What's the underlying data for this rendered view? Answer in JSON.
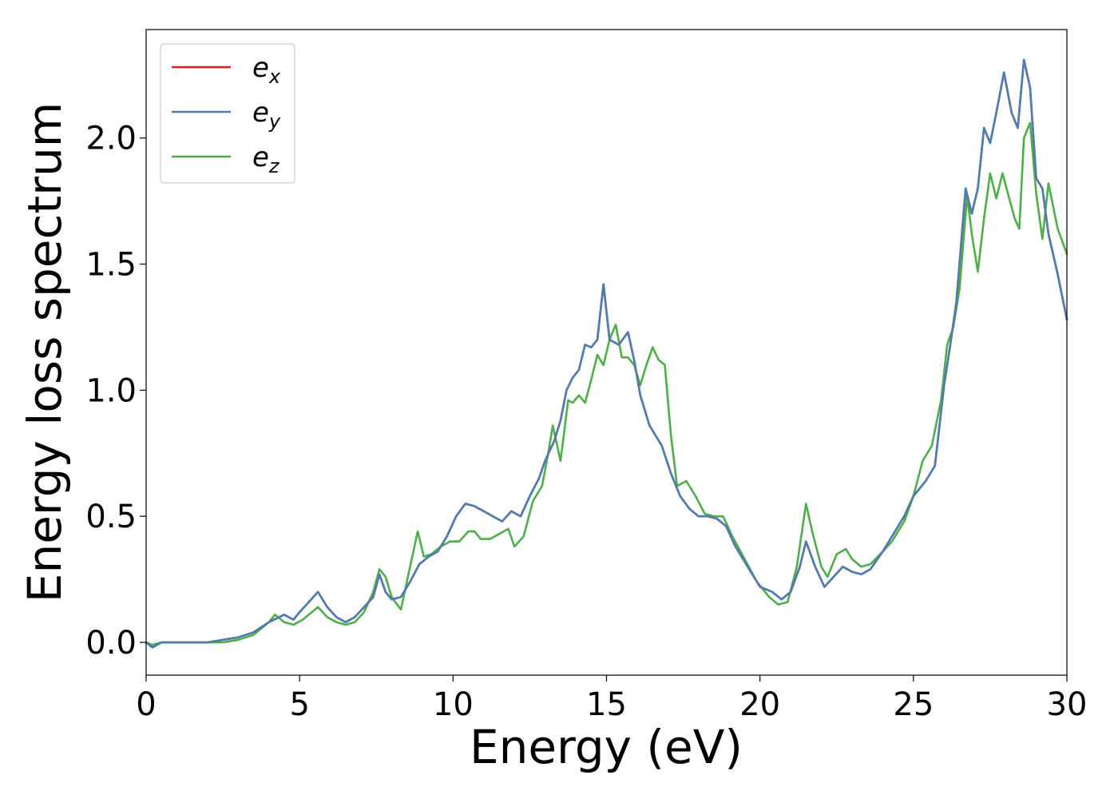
{
  "chart_data": {
    "type": "line",
    "title": "",
    "xlabel": "Energy (eV)",
    "ylabel": "Energy loss spectrum",
    "xlim": [
      0,
      30
    ],
    "ylim": [
      -0.13,
      2.43
    ],
    "xticks": [
      0,
      5,
      10,
      15,
      20,
      25,
      30
    ],
    "xtick_labels": [
      "0",
      "5",
      "10",
      "15",
      "20",
      "25",
      "30"
    ],
    "yticks": [
      0.0,
      0.5,
      1.0,
      1.5,
      2.0
    ],
    "ytick_labels": [
      "0.0",
      "0.5",
      "1.0",
      "1.5",
      "2.0"
    ],
    "grid": false,
    "legend_position": "top-left",
    "series": [
      {
        "name": "e",
        "subscript": "x",
        "color": "#e41a1c",
        "points": [
          [
            0,
            0.0
          ],
          [
            0.2,
            -0.02
          ],
          [
            0.5,
            0.0
          ],
          [
            1,
            0.0
          ],
          [
            2,
            0.0
          ],
          [
            2.5,
            0.01
          ],
          [
            3,
            0.02
          ],
          [
            3.5,
            0.04
          ],
          [
            4,
            0.08
          ],
          [
            4.5,
            0.11
          ],
          [
            4.8,
            0.09
          ],
          [
            5,
            0.12
          ],
          [
            5.3,
            0.16
          ],
          [
            5.6,
            0.2
          ],
          [
            5.9,
            0.14
          ],
          [
            6.2,
            0.1
          ],
          [
            6.5,
            0.08
          ],
          [
            6.8,
            0.1
          ],
          [
            7.1,
            0.14
          ],
          [
            7.4,
            0.18
          ],
          [
            7.6,
            0.27
          ],
          [
            7.8,
            0.2
          ],
          [
            8.0,
            0.17
          ],
          [
            8.3,
            0.18
          ],
          [
            8.6,
            0.24
          ],
          [
            8.9,
            0.31
          ],
          [
            9.2,
            0.34
          ],
          [
            9.5,
            0.36
          ],
          [
            9.8,
            0.42
          ],
          [
            10.1,
            0.5
          ],
          [
            10.4,
            0.55
          ],
          [
            10.7,
            0.54
          ],
          [
            11.0,
            0.52
          ],
          [
            11.3,
            0.5
          ],
          [
            11.6,
            0.48
          ],
          [
            11.9,
            0.52
          ],
          [
            12.2,
            0.5
          ],
          [
            12.5,
            0.58
          ],
          [
            12.8,
            0.65
          ],
          [
            13.0,
            0.72
          ],
          [
            13.3,
            0.8
          ],
          [
            13.5,
            0.88
          ],
          [
            13.7,
            1.0
          ],
          [
            13.9,
            1.05
          ],
          [
            14.1,
            1.08
          ],
          [
            14.3,
            1.18
          ],
          [
            14.5,
            1.17
          ],
          [
            14.7,
            1.2
          ],
          [
            14.9,
            1.42
          ],
          [
            15.1,
            1.2
          ],
          [
            15.4,
            1.18
          ],
          [
            15.7,
            1.23
          ],
          [
            15.9,
            1.12
          ],
          [
            16.1,
            0.98
          ],
          [
            16.4,
            0.86
          ],
          [
            16.8,
            0.78
          ],
          [
            17.1,
            0.67
          ],
          [
            17.4,
            0.58
          ],
          [
            17.7,
            0.53
          ],
          [
            18.0,
            0.5
          ],
          [
            18.3,
            0.5
          ],
          [
            18.6,
            0.49
          ],
          [
            18.9,
            0.46
          ],
          [
            19.2,
            0.38
          ],
          [
            19.6,
            0.3
          ],
          [
            20.0,
            0.22
          ],
          [
            20.4,
            0.2
          ],
          [
            20.7,
            0.17
          ],
          [
            21.0,
            0.2
          ],
          [
            21.3,
            0.3
          ],
          [
            21.5,
            0.4
          ],
          [
            21.8,
            0.3
          ],
          [
            22.1,
            0.22
          ],
          [
            22.4,
            0.26
          ],
          [
            22.7,
            0.3
          ],
          [
            23.0,
            0.28
          ],
          [
            23.3,
            0.27
          ],
          [
            23.6,
            0.29
          ],
          [
            24.0,
            0.36
          ],
          [
            24.4,
            0.44
          ],
          [
            24.7,
            0.5
          ],
          [
            25.0,
            0.58
          ],
          [
            25.4,
            0.64
          ],
          [
            25.7,
            0.7
          ],
          [
            26.0,
            1.02
          ],
          [
            26.2,
            1.18
          ],
          [
            26.4,
            1.35
          ],
          [
            26.7,
            1.8
          ],
          [
            26.9,
            1.7
          ],
          [
            27.1,
            1.8
          ],
          [
            27.3,
            2.04
          ],
          [
            27.5,
            1.98
          ],
          [
            27.7,
            2.1
          ],
          [
            27.95,
            2.26
          ],
          [
            28.2,
            2.1
          ],
          [
            28.4,
            2.04
          ],
          [
            28.6,
            2.31
          ],
          [
            28.8,
            2.2
          ],
          [
            29.0,
            1.84
          ],
          [
            29.2,
            1.8
          ],
          [
            29.4,
            1.62
          ],
          [
            29.7,
            1.46
          ],
          [
            30,
            1.28
          ]
        ]
      },
      {
        "name": "e",
        "subscript": "y",
        "color": "#4a7eb4",
        "points": [
          [
            0,
            0.0
          ],
          [
            0.2,
            -0.02
          ],
          [
            0.5,
            0.0
          ],
          [
            1,
            0.0
          ],
          [
            2,
            0.0
          ],
          [
            2.5,
            0.01
          ],
          [
            3,
            0.02
          ],
          [
            3.5,
            0.04
          ],
          [
            4,
            0.08
          ],
          [
            4.5,
            0.11
          ],
          [
            4.8,
            0.09
          ],
          [
            5,
            0.12
          ],
          [
            5.3,
            0.16
          ],
          [
            5.6,
            0.2
          ],
          [
            5.9,
            0.14
          ],
          [
            6.2,
            0.1
          ],
          [
            6.5,
            0.08
          ],
          [
            6.8,
            0.1
          ],
          [
            7.1,
            0.14
          ],
          [
            7.4,
            0.18
          ],
          [
            7.6,
            0.27
          ],
          [
            7.8,
            0.2
          ],
          [
            8.0,
            0.17
          ],
          [
            8.3,
            0.18
          ],
          [
            8.6,
            0.24
          ],
          [
            8.9,
            0.31
          ],
          [
            9.2,
            0.34
          ],
          [
            9.5,
            0.36
          ],
          [
            9.8,
            0.42
          ],
          [
            10.1,
            0.5
          ],
          [
            10.4,
            0.55
          ],
          [
            10.7,
            0.54
          ],
          [
            11.0,
            0.52
          ],
          [
            11.3,
            0.5
          ],
          [
            11.6,
            0.48
          ],
          [
            11.9,
            0.52
          ],
          [
            12.2,
            0.5
          ],
          [
            12.5,
            0.58
          ],
          [
            12.8,
            0.65
          ],
          [
            13.0,
            0.72
          ],
          [
            13.3,
            0.8
          ],
          [
            13.5,
            0.88
          ],
          [
            13.7,
            1.0
          ],
          [
            13.9,
            1.05
          ],
          [
            14.1,
            1.08
          ],
          [
            14.3,
            1.18
          ],
          [
            14.5,
            1.17
          ],
          [
            14.7,
            1.2
          ],
          [
            14.9,
            1.42
          ],
          [
            15.1,
            1.2
          ],
          [
            15.4,
            1.18
          ],
          [
            15.7,
            1.23
          ],
          [
            15.9,
            1.12
          ],
          [
            16.1,
            0.98
          ],
          [
            16.4,
            0.86
          ],
          [
            16.8,
            0.78
          ],
          [
            17.1,
            0.67
          ],
          [
            17.4,
            0.58
          ],
          [
            17.7,
            0.53
          ],
          [
            18.0,
            0.5
          ],
          [
            18.3,
            0.5
          ],
          [
            18.6,
            0.49
          ],
          [
            18.9,
            0.46
          ],
          [
            19.2,
            0.38
          ],
          [
            19.6,
            0.3
          ],
          [
            20.0,
            0.22
          ],
          [
            20.4,
            0.2
          ],
          [
            20.7,
            0.17
          ],
          [
            21.0,
            0.2
          ],
          [
            21.3,
            0.3
          ],
          [
            21.5,
            0.4
          ],
          [
            21.8,
            0.3
          ],
          [
            22.1,
            0.22
          ],
          [
            22.4,
            0.26
          ],
          [
            22.7,
            0.3
          ],
          [
            23.0,
            0.28
          ],
          [
            23.3,
            0.27
          ],
          [
            23.6,
            0.29
          ],
          [
            24.0,
            0.36
          ],
          [
            24.4,
            0.44
          ],
          [
            24.7,
            0.5
          ],
          [
            25.0,
            0.58
          ],
          [
            25.4,
            0.64
          ],
          [
            25.7,
            0.7
          ],
          [
            26.0,
            1.02
          ],
          [
            26.2,
            1.18
          ],
          [
            26.4,
            1.35
          ],
          [
            26.7,
            1.8
          ],
          [
            26.9,
            1.7
          ],
          [
            27.1,
            1.8
          ],
          [
            27.3,
            2.04
          ],
          [
            27.5,
            1.98
          ],
          [
            27.7,
            2.1
          ],
          [
            27.95,
            2.26
          ],
          [
            28.2,
            2.1
          ],
          [
            28.4,
            2.04
          ],
          [
            28.6,
            2.31
          ],
          [
            28.8,
            2.2
          ],
          [
            29.0,
            1.84
          ],
          [
            29.2,
            1.8
          ],
          [
            29.4,
            1.62
          ],
          [
            29.7,
            1.46
          ],
          [
            30,
            1.28
          ]
        ]
      },
      {
        "name": "e",
        "subscript": "z",
        "color": "#4daf4a",
        "points": [
          [
            0,
            0.0
          ],
          [
            0.2,
            -0.01
          ],
          [
            0.5,
            0.0
          ],
          [
            1,
            0.0
          ],
          [
            2,
            0.0
          ],
          [
            2.5,
            0.0
          ],
          [
            3,
            0.01
          ],
          [
            3.5,
            0.03
          ],
          [
            4,
            0.08
          ],
          [
            4.2,
            0.11
          ],
          [
            4.5,
            0.08
          ],
          [
            4.8,
            0.07
          ],
          [
            5.1,
            0.09
          ],
          [
            5.3,
            0.11
          ],
          [
            5.6,
            0.14
          ],
          [
            5.9,
            0.1
          ],
          [
            6.2,
            0.08
          ],
          [
            6.5,
            0.07
          ],
          [
            6.8,
            0.08
          ],
          [
            7.1,
            0.12
          ],
          [
            7.4,
            0.2
          ],
          [
            7.6,
            0.29
          ],
          [
            7.8,
            0.26
          ],
          [
            8.0,
            0.18
          ],
          [
            8.3,
            0.13
          ],
          [
            8.6,
            0.3
          ],
          [
            8.85,
            0.44
          ],
          [
            9.05,
            0.34
          ],
          [
            9.3,
            0.35
          ],
          [
            9.6,
            0.38
          ],
          [
            9.9,
            0.4
          ],
          [
            10.2,
            0.4
          ],
          [
            10.5,
            0.44
          ],
          [
            10.7,
            0.44
          ],
          [
            10.9,
            0.41
          ],
          [
            11.2,
            0.41
          ],
          [
            11.5,
            0.43
          ],
          [
            11.8,
            0.45
          ],
          [
            12.0,
            0.38
          ],
          [
            12.3,
            0.42
          ],
          [
            12.6,
            0.56
          ],
          [
            12.9,
            0.62
          ],
          [
            13.1,
            0.75
          ],
          [
            13.25,
            0.86
          ],
          [
            13.5,
            0.72
          ],
          [
            13.75,
            0.96
          ],
          [
            13.9,
            0.95
          ],
          [
            14.1,
            0.98
          ],
          [
            14.3,
            0.95
          ],
          [
            14.5,
            1.04
          ],
          [
            14.7,
            1.14
          ],
          [
            14.9,
            1.1
          ],
          [
            15.1,
            1.2
          ],
          [
            15.3,
            1.26
          ],
          [
            15.5,
            1.13
          ],
          [
            15.7,
            1.13
          ],
          [
            15.9,
            1.1
          ],
          [
            16.1,
            1.02
          ],
          [
            16.3,
            1.1
          ],
          [
            16.5,
            1.17
          ],
          [
            16.7,
            1.12
          ],
          [
            16.9,
            1.1
          ],
          [
            17.1,
            0.82
          ],
          [
            17.3,
            0.62
          ],
          [
            17.6,
            0.64
          ],
          [
            17.9,
            0.58
          ],
          [
            18.2,
            0.51
          ],
          [
            18.5,
            0.5
          ],
          [
            18.8,
            0.5
          ],
          [
            19.1,
            0.42
          ],
          [
            19.5,
            0.33
          ],
          [
            19.9,
            0.24
          ],
          [
            20.3,
            0.18
          ],
          [
            20.6,
            0.15
          ],
          [
            20.9,
            0.16
          ],
          [
            21.2,
            0.3
          ],
          [
            21.5,
            0.55
          ],
          [
            21.7,
            0.44
          ],
          [
            22.0,
            0.3
          ],
          [
            22.2,
            0.26
          ],
          [
            22.5,
            0.35
          ],
          [
            22.8,
            0.37
          ],
          [
            23.0,
            0.33
          ],
          [
            23.3,
            0.3
          ],
          [
            23.6,
            0.31
          ],
          [
            24.0,
            0.36
          ],
          [
            24.3,
            0.4
          ],
          [
            24.7,
            0.48
          ],
          [
            25.0,
            0.58
          ],
          [
            25.3,
            0.72
          ],
          [
            25.6,
            0.78
          ],
          [
            25.9,
            0.96
          ],
          [
            26.1,
            1.18
          ],
          [
            26.3,
            1.25
          ],
          [
            26.5,
            1.4
          ],
          [
            26.75,
            1.77
          ],
          [
            26.9,
            1.62
          ],
          [
            27.1,
            1.47
          ],
          [
            27.3,
            1.68
          ],
          [
            27.5,
            1.86
          ],
          [
            27.7,
            1.76
          ],
          [
            27.9,
            1.86
          ],
          [
            28.1,
            1.77
          ],
          [
            28.3,
            1.68
          ],
          [
            28.45,
            1.64
          ],
          [
            28.6,
            2.0
          ],
          [
            28.8,
            2.06
          ],
          [
            29.0,
            1.78
          ],
          [
            29.2,
            1.6
          ],
          [
            29.4,
            1.82
          ],
          [
            29.7,
            1.64
          ],
          [
            30,
            1.54
          ]
        ]
      }
    ]
  }
}
